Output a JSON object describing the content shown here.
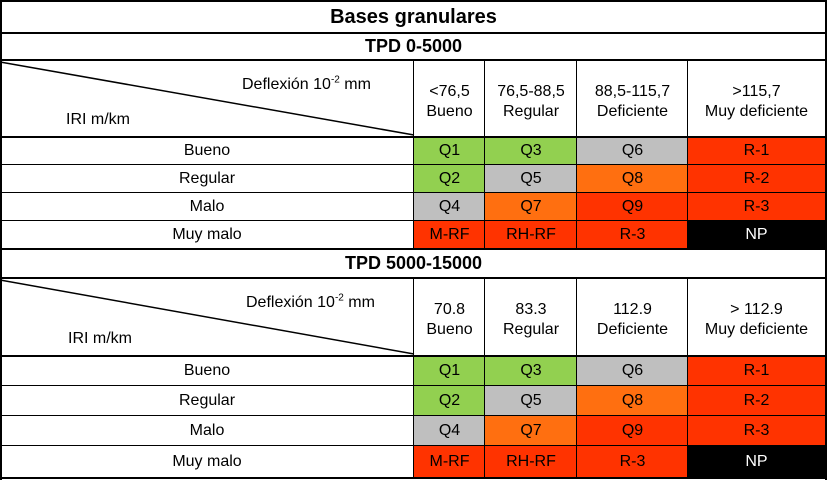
{
  "title": "Bases granulares",
  "deflection_label": "Deflexión 10",
  "deflection_exp": "-2",
  "deflection_unit": "mm",
  "iri_label": "IRI m/km",
  "row_labels": [
    "Bueno",
    "Regular",
    "Malo",
    "Muy malo"
  ],
  "colors": {
    "green": "#92d050",
    "gray": "#bfbfbf",
    "orange": "#ff6f10",
    "red": "#ff3300",
    "black": "#000000"
  },
  "sections": [
    {
      "heading": "TPD  0-5000",
      "columns": [
        {
          "range": "<76,5",
          "label": "Bueno"
        },
        {
          "range": "76,5-88,5",
          "label": "Regular"
        },
        {
          "range": "88,5-115,7",
          "label": "Deficiente"
        },
        {
          "range": ">115,7",
          "label": "Muy deficiente"
        }
      ],
      "rows": [
        {
          "cells": [
            {
              "text": "Q1",
              "color": "green"
            },
            {
              "text": "Q3",
              "color": "green"
            },
            {
              "text": "Q6",
              "color": "gray"
            },
            {
              "text": "R-1",
              "color": "red"
            }
          ]
        },
        {
          "cells": [
            {
              "text": "Q2",
              "color": "green"
            },
            {
              "text": "Q5",
              "color": "gray"
            },
            {
              "text": "Q8",
              "color": "orange"
            },
            {
              "text": "R-2",
              "color": "red"
            }
          ]
        },
        {
          "cells": [
            {
              "text": "Q4",
              "color": "gray"
            },
            {
              "text": "Q7",
              "color": "orange"
            },
            {
              "text": "Q9",
              "color": "red"
            },
            {
              "text": "R-3",
              "color": "red"
            }
          ]
        },
        {
          "cells": [
            {
              "text": "M-RF",
              "color": "red"
            },
            {
              "text": "RH-RF",
              "color": "red"
            },
            {
              "text": "R-3",
              "color": "red"
            },
            {
              "text": "NP",
              "color": "black"
            }
          ]
        }
      ]
    },
    {
      "heading": "TPD 5000-15000",
      "columns": [
        {
          "range": "70.8",
          "label": "Bueno"
        },
        {
          "range": "83.3",
          "label": "Regular"
        },
        {
          "range": "112.9",
          "label": "Deficiente"
        },
        {
          "range": "> 112.9",
          "label": "Muy deficiente"
        }
      ],
      "rows": [
        {
          "cells": [
            {
              "text": "Q1",
              "color": "green"
            },
            {
              "text": "Q3",
              "color": "green"
            },
            {
              "text": "Q6",
              "color": "gray"
            },
            {
              "text": "R-1",
              "color": "red"
            }
          ]
        },
        {
          "cells": [
            {
              "text": "Q2",
              "color": "green"
            },
            {
              "text": "Q5",
              "color": "gray"
            },
            {
              "text": "Q8",
              "color": "orange"
            },
            {
              "text": "R-2",
              "color": "red"
            }
          ]
        },
        {
          "cells": [
            {
              "text": "Q4",
              "color": "gray"
            },
            {
              "text": "Q7",
              "color": "orange"
            },
            {
              "text": "Q9",
              "color": "red"
            },
            {
              "text": "R-3",
              "color": "red"
            }
          ]
        },
        {
          "cells": [
            {
              "text": "M-RF",
              "color": "red"
            },
            {
              "text": "RH-RF",
              "color": "red"
            },
            {
              "text": "R-3",
              "color": "red"
            },
            {
              "text": "NP",
              "color": "black"
            }
          ]
        }
      ]
    }
  ]
}
